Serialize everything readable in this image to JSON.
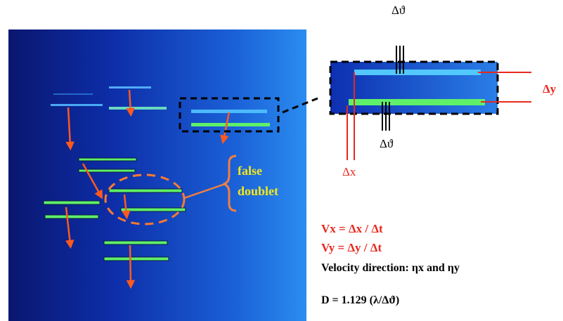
{
  "colors": {
    "arrow": "#ff5a1e",
    "speckle_dash": "#ff7a2e",
    "bracket": "#f08040",
    "false_label": "#f4e81a",
    "red_label": "#e8281e",
    "black": "#000000",
    "streak": "#5ff06a",
    "streak_dark": "#0a1a40"
  },
  "labels": {
    "delta_theta_top": "Δϑ",
    "delta_theta_bottom": "Δϑ",
    "delta_y": "Δy",
    "delta_x": "Δx",
    "false_line1": "false",
    "false_line2": "doublet",
    "vx": "Vx = Δx / Δt",
    "vy": "Vy = Δy / Δt",
    "velocity": "Velocity direction: ηx and ηy",
    "d_formula": "D = 1.129 (λ/Δϑ)"
  }
}
